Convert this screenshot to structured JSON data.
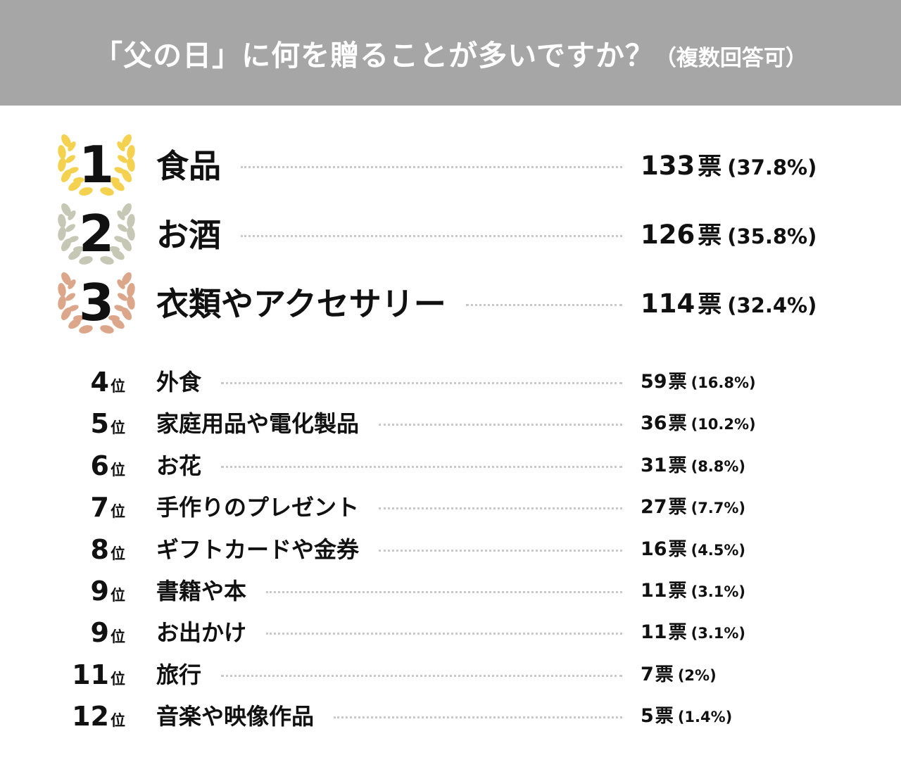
{
  "header": {
    "title": "「父の日」に何を贈ることが多いですか？",
    "subtitle": "（複数回答可）"
  },
  "rank_suffix": "位",
  "vote_unit": "票",
  "colors": {
    "header_bg": "#a6a6a6",
    "gold": "#f4d24f",
    "silver": "#c6c7b4",
    "bronze": "#dca68b"
  },
  "chart_data": {
    "type": "table",
    "title": "「父の日」に何を贈ることが多いですか？（複数回答可）",
    "rows": [
      {
        "rank": "1",
        "label": "食品",
        "votes": 133,
        "votes_text": "133",
        "percent_text": "(37.8%)",
        "percent": 37.8,
        "medal": "gold-wreath-icon"
      },
      {
        "rank": "2",
        "label": "お酒",
        "votes": 126,
        "votes_text": "126",
        "percent_text": "(35.8%)",
        "percent": 35.8,
        "medal": "silver-wreath-icon"
      },
      {
        "rank": "3",
        "label": "衣類やアクセサリー",
        "votes": 114,
        "votes_text": "114",
        "percent_text": "(32.4%)",
        "percent": 32.4,
        "medal": "bronze-wreath-icon"
      },
      {
        "rank": "4",
        "label": "外食",
        "votes": 59,
        "votes_text": "59",
        "percent_text": "(16.8%)",
        "percent": 16.8
      },
      {
        "rank": "5",
        "label": "家庭用品や電化製品",
        "votes": 36,
        "votes_text": "36",
        "percent_text": "(10.2%)",
        "percent": 10.2
      },
      {
        "rank": "6",
        "label": "お花",
        "votes": 31,
        "votes_text": "31",
        "percent_text": "(8.8%)",
        "percent": 8.8
      },
      {
        "rank": "7",
        "label": "手作りのプレゼント",
        "votes": 27,
        "votes_text": "27",
        "percent_text": "(7.7%)",
        "percent": 7.7
      },
      {
        "rank": "8",
        "label": "ギフトカードや金券",
        "votes": 16,
        "votes_text": "16",
        "percent_text": "(4.5%)",
        "percent": 4.5
      },
      {
        "rank": "9",
        "label": "書籍や本",
        "votes": 11,
        "votes_text": "11",
        "percent_text": "(3.1%)",
        "percent": 3.1
      },
      {
        "rank": "9",
        "label": "お出かけ",
        "votes": 11,
        "votes_text": "11",
        "percent_text": "(3.1%)",
        "percent": 3.1
      },
      {
        "rank": "11",
        "label": "旅行",
        "votes": 7,
        "votes_text": "7",
        "percent_text": "(2%)",
        "percent": 2
      },
      {
        "rank": "12",
        "label": "音楽や映像作品",
        "votes": 5,
        "votes_text": "5",
        "percent_text": "(1.4%)",
        "percent": 1.4
      }
    ]
  }
}
